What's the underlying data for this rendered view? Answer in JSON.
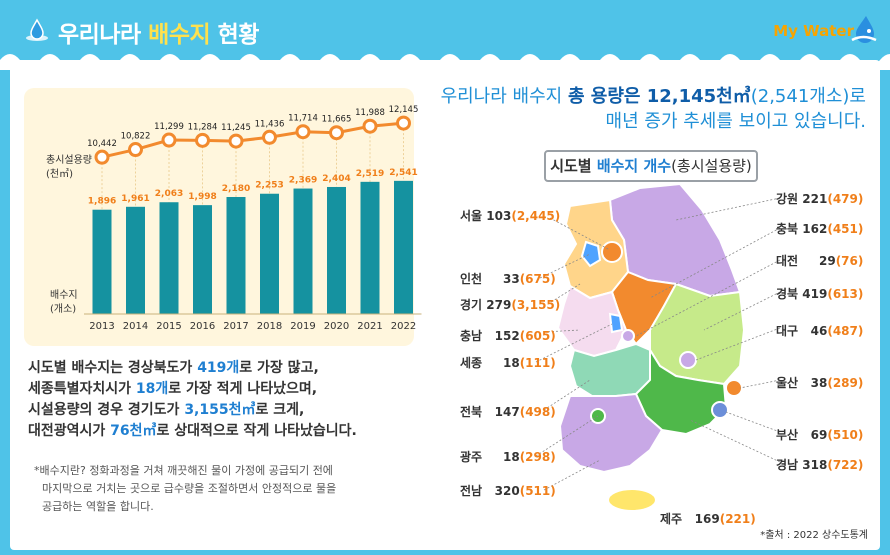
{
  "header": {
    "title_prefix": "우리나라 ",
    "title_highlight": "배수지",
    "title_suffix": " 현황",
    "brand": "My Water"
  },
  "chart_data": {
    "type": "bar+line",
    "categories": [
      "2013",
      "2014",
      "2015",
      "2016",
      "2017",
      "2018",
      "2019",
      "2020",
      "2021",
      "2022"
    ],
    "series": [
      {
        "name": "총시설용량\n(천㎥)",
        "type": "line",
        "values": [
          10442,
          10822,
          11299,
          11284,
          11245,
          11436,
          11714,
          11665,
          11988,
          12145
        ],
        "labels": [
          "10,442",
          "10,822",
          "11,299",
          "11,284",
          "11,245",
          "11,436",
          "11,714",
          "11,665",
          "11,988",
          "12,145"
        ]
      },
      {
        "name": "배수지\n(개소)",
        "type": "bar",
        "values": [
          1896,
          1961,
          2063,
          1998,
          2180,
          2253,
          2369,
          2404,
          2519,
          2541
        ],
        "labels": [
          "1,896",
          "1,961",
          "2,063",
          "1,998",
          "2,180",
          "2,253",
          "2,369",
          "2,404",
          "2,519",
          "2,541"
        ]
      }
    ],
    "line_label_1": "총시설용량",
    "line_label_2": "(천㎥)",
    "bar_label_1": "배수지",
    "bar_label_2": "(개소)",
    "colors": {
      "bar": "#1592a0",
      "line": "#f28a2e",
      "bar_text": "#f07f1a",
      "background": "#fff6dd"
    }
  },
  "summary": {
    "p1": "시도별 배수지는 경상북도가 ",
    "p1b": "419개",
    "p2": "로 가장 많고,",
    "p3": "세종특별자치시가 ",
    "p3b": "18개",
    "p4": "로 가장 적게 나타났으며,",
    "p5": "시설용량의 경우 경기도가 ",
    "p5b": "3,155천㎥",
    "p6": "로 크게,",
    "p7": "대전광역시가 ",
    "p7b": "76천㎥",
    "p8": "로 상대적으로 작게 나타났습니다."
  },
  "note": {
    "line1": "*배수지란? 정화과정을 거쳐 깨끗해진 물이 가정에 공급되기 전에",
    "line2": "마지막으로 거치는 곳으로 급수량을 조절하면서 안정적으로 물을",
    "line3": "공급하는 역할을 합니다."
  },
  "headline": {
    "l1a": "우리나라 배수지 ",
    "l1b": "총 용량은 12,145천㎥",
    "l1c": "(2,541개소)로",
    "l2": "매년 증가 추세를 보이고 있습니다."
  },
  "map_title": {
    "a": "시도별 ",
    "b": "배수지 개수",
    "c": "(총시설용량)"
  },
  "regions": [
    {
      "name": "서울",
      "count": "103",
      "capacity": "(2,445)"
    },
    {
      "name": "인천",
      "count": "33",
      "capacity": "(675)"
    },
    {
      "name": "경기",
      "count": "279",
      "capacity": "(3,155)"
    },
    {
      "name": "충남",
      "count": "152",
      "capacity": "(605)"
    },
    {
      "name": "세종",
      "count": "18",
      "capacity": "(111)"
    },
    {
      "name": "전북",
      "count": "147",
      "capacity": "(498)"
    },
    {
      "name": "광주",
      "count": "18",
      "capacity": "(298)"
    },
    {
      "name": "전남",
      "count": "320",
      "capacity": "(511)"
    },
    {
      "name": "제주",
      "count": "169",
      "capacity": "(221)"
    },
    {
      "name": "강원",
      "count": "221",
      "capacity": "(479)"
    },
    {
      "name": "충북",
      "count": "162",
      "capacity": "(451)"
    },
    {
      "name": "대전",
      "count": "29",
      "capacity": "(76)"
    },
    {
      "name": "경북",
      "count": "419",
      "capacity": "(613)"
    },
    {
      "name": "대구",
      "count": "46",
      "capacity": "(487)"
    },
    {
      "name": "울산",
      "count": "38",
      "capacity": "(289)"
    },
    {
      "name": "부산",
      "count": "69",
      "capacity": "(510)"
    },
    {
      "name": "경남",
      "count": "318",
      "capacity": "(722)"
    }
  ],
  "source": "*출처 : 2022 상수도통계"
}
